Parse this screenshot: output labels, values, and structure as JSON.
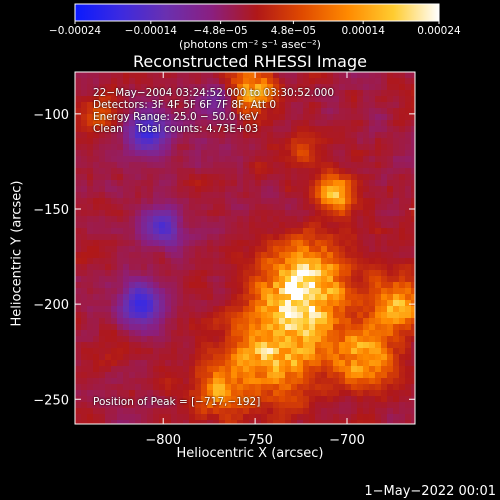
{
  "chart_data": {
    "type": "heatmap",
    "title": "Reconstructed RHESSI Image",
    "xlabel": "Heliocentric X (arcsec)",
    "ylabel": "Heliocentric Y (arcsec)",
    "xlim": [
      -848,
      -663
    ],
    "ylim": [
      -263,
      -78
    ],
    "x_ticks": [
      {
        "value": -800,
        "label": "−800"
      },
      {
        "value": -750,
        "label": "−750"
      },
      {
        "value": -700,
        "label": "−700"
      }
    ],
    "y_ticks": [
      {
        "value": -100,
        "label": "−100"
      },
      {
        "value": -150,
        "label": "−150"
      },
      {
        "value": -200,
        "label": "−200"
      },
      {
        "value": -250,
        "label": "−250"
      }
    ],
    "colorbar": {
      "label": "(photons cm⁻² s⁻¹ asec⁻²)",
      "range": [
        -0.00024,
        0.00024
      ],
      "tick_labels_top": [
        "−0.00024",
        "−4.8e−05",
        "0.00014"
      ],
      "tick_labels_bottom": [
        "−0.00014",
        "4.8e−05",
        "0.00024"
      ],
      "tick_values_top": [
        -0.00024,
        -4.8e-05,
        0.00014
      ],
      "tick_values_bottom": [
        -0.00014,
        4.8e-05,
        0.00024
      ],
      "colormap": [
        "#0a1aff",
        "#3c2ae0",
        "#6a30b0",
        "#8a1f80",
        "#b01818",
        "#e04a00",
        "#ff8a00",
        "#ffcc30",
        "#ffffff"
      ]
    },
    "annotations": [
      "22−May−2004 03:24:52.000 to 03:30:52.000",
      "Detectors: 3F 4F 5F 6F 7F 8F, Att 0",
      "Energy Range: 25.0 − 50.0 keV",
      "Clean    Total counts: 4.73E+03"
    ],
    "peak_label": "Position of Peak = [−717,−192]",
    "peak": {
      "x": -717,
      "y": -192
    },
    "bright_regions": [
      {
        "x": -722,
        "y": -190,
        "peak": 0.00024,
        "size": 22
      },
      {
        "x": -738,
        "y": -225,
        "peak": 0.00019,
        "size": 25
      },
      {
        "x": -690,
        "y": -228,
        "peak": 0.00017,
        "size": 16
      },
      {
        "x": -672,
        "y": -200,
        "peak": 0.00016,
        "size": 15
      },
      {
        "x": -752,
        "y": -88,
        "peak": 0.00016,
        "size": 12
      },
      {
        "x": -706,
        "y": -142,
        "peak": 0.00017,
        "size": 10
      },
      {
        "x": -770,
        "y": -245,
        "peak": 0.00012,
        "size": 14
      },
      {
        "x": -835,
        "y": -100,
        "peak": 9e-05,
        "size": 9
      },
      {
        "x": -725,
        "y": -120,
        "peak": 8e-05,
        "size": 9
      },
      {
        "x": -830,
        "y": -225,
        "peak": 4e-05,
        "size": 10
      }
    ],
    "dark_regions": [
      {
        "x": -808,
        "y": -110,
        "value": -0.00016,
        "size": 12
      },
      {
        "x": -812,
        "y": -200,
        "value": -0.00016,
        "size": 12
      },
      {
        "x": -800,
        "y": -160,
        "value": -0.00012,
        "size": 12
      },
      {
        "x": -770,
        "y": -95,
        "value": -8e-05,
        "size": 10
      }
    ]
  },
  "footer_date": "1−May−2022 00:01"
}
